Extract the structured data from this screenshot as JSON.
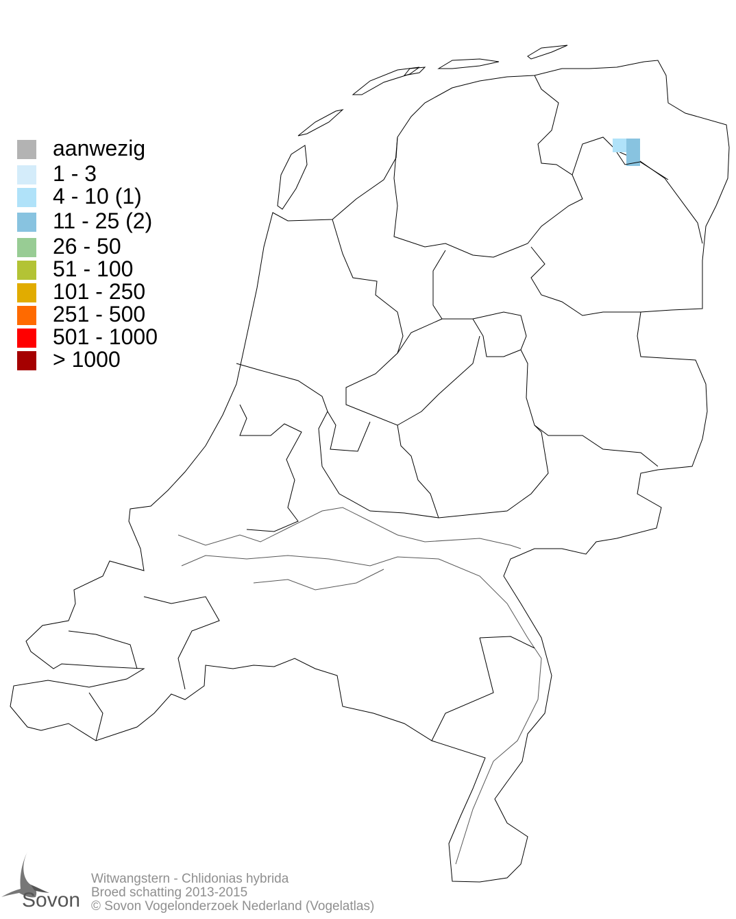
{
  "legend": {
    "items": [
      {
        "label": "aanwezig",
        "color": "#b3b3b3"
      },
      {
        "label": "1 - 3",
        "color": "#d4ecfa"
      },
      {
        "label": "4 - 10 (1)",
        "color": "#b0e2f9"
      },
      {
        "label": "11 - 25 (2)",
        "color": "#88c3e0"
      },
      {
        "label": "26 - 50",
        "color": "#98cc94"
      },
      {
        "label": "51 - 100",
        "color": "#b3c335"
      },
      {
        "label": "101 - 250",
        "color": "#e1ac00"
      },
      {
        "label": "251 - 500",
        "color": "#ff6a00"
      },
      {
        "label": "501 - 1000",
        "color": "#ff0000"
      },
      {
        "label": "> 1000",
        "color": "#a50000"
      }
    ]
  },
  "map": {
    "cells": [
      {
        "category": "4 - 10",
        "color": "#b0e2f9"
      },
      {
        "category": "11 - 25",
        "color": "#88c3e0"
      }
    ]
  },
  "credits": {
    "species": "Witwangstern - Chlidonias hybrida",
    "subtitle": "Broed schatting 2013-2015",
    "copyright": "© Sovon Vogelonderzoek Nederland (Vogelatlas)"
  },
  "logo": {
    "text": "Sovon"
  }
}
